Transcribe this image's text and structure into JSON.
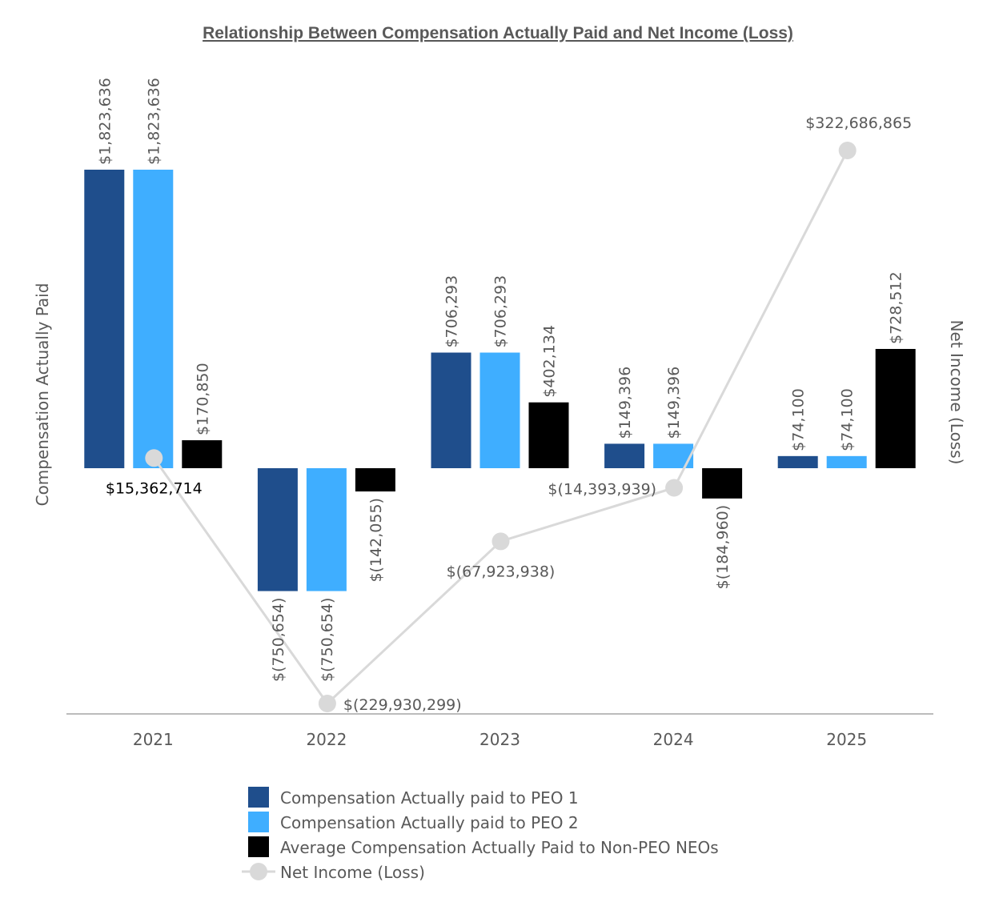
{
  "chart_data": {
    "type": "bar",
    "title": "Relationship Between Compensation Actually Paid and Net Income (Loss)",
    "ylabel": "Compensation Actually Paid",
    "y2label": "Net Income (Loss)",
    "categories": [
      "2021",
      "2022",
      "2023",
      "2024",
      "2025"
    ],
    "ylim": [
      -1500000,
      2000000
    ],
    "y2lim": [
      -260000000,
      400000000
    ],
    "series": [
      {
        "name": "Compensation Actually paid to PEO 1",
        "kind": "bar",
        "axis": "left",
        "color": "#1F4E8C",
        "values": [
          1823636,
          -750654,
          706293,
          149396,
          74100
        ],
        "labels": [
          "$1,823,636",
          "$(750,654)",
          "$706,293",
          "$149,396",
          "$74,100"
        ]
      },
      {
        "name": "Compensation Actually paid to PEO 2",
        "kind": "bar",
        "axis": "left",
        "color": "#3FAEFF",
        "values": [
          1823636,
          -750654,
          706293,
          149396,
          74100
        ],
        "labels": [
          "$1,823,636",
          "$(750,654)",
          "$706,293",
          "$149,396",
          "$74,100"
        ]
      },
      {
        "name": "Average Compensation Actually Paid to Non-PEO NEOs",
        "kind": "bar",
        "axis": "left",
        "color": "#000000",
        "values": [
          170850,
          -142055,
          402134,
          -184960,
          728512
        ],
        "labels": [
          "$170,850",
          "$(142,055)",
          "$402,134",
          "$(184,960)",
          "$728,512"
        ]
      },
      {
        "name": "Net Income (Loss)",
        "kind": "line",
        "axis": "right",
        "color": "#D9D9D9",
        "values": [
          15362714,
          -229930299,
          -67923938,
          -14393939,
          322686865
        ],
        "labels": [
          "$15,362,714",
          "$(229,930,299)",
          "$(67,923,938)",
          "$(14,393,939)",
          "$322,686,865"
        ]
      }
    ],
    "legend": "bottom"
  }
}
